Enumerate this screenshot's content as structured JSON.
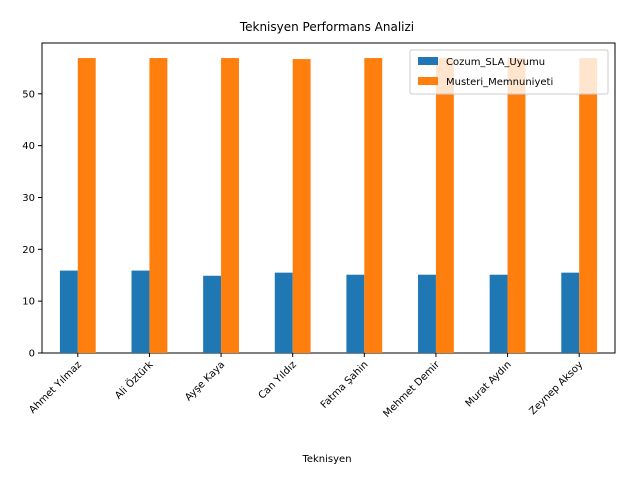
{
  "chart_data": {
    "type": "bar",
    "title": "Teknisyen Performans Analizi",
    "xlabel": "Teknisyen",
    "ylabel": "",
    "categories": [
      "Ahmet Yılmaz",
      "Ali Öztürk",
      "Ayşe Kaya",
      "Can Yıldız",
      "Fatma Şahin",
      "Mehmet Demir",
      "Murat Aydın",
      "Zeynep Aksoy"
    ],
    "series": [
      {
        "name": "Cozum_SLA_Uyumu",
        "color": "#1f77b4",
        "values": [
          15.9,
          15.9,
          14.9,
          15.5,
          15.1,
          15.1,
          15.1,
          15.5
        ]
      },
      {
        "name": "Musteri_Memnuniyeti",
        "color": "#ff7f0e",
        "values": [
          56.9,
          56.9,
          56.9,
          56.7,
          56.9,
          56.9,
          56.9,
          56.9
        ]
      }
    ],
    "ylim": [
      0,
      59.8
    ],
    "yticks": [
      0,
      10,
      20,
      30,
      40,
      50
    ],
    "xtick_rotation": 45,
    "legend_position": "upper right",
    "grid": false
  }
}
